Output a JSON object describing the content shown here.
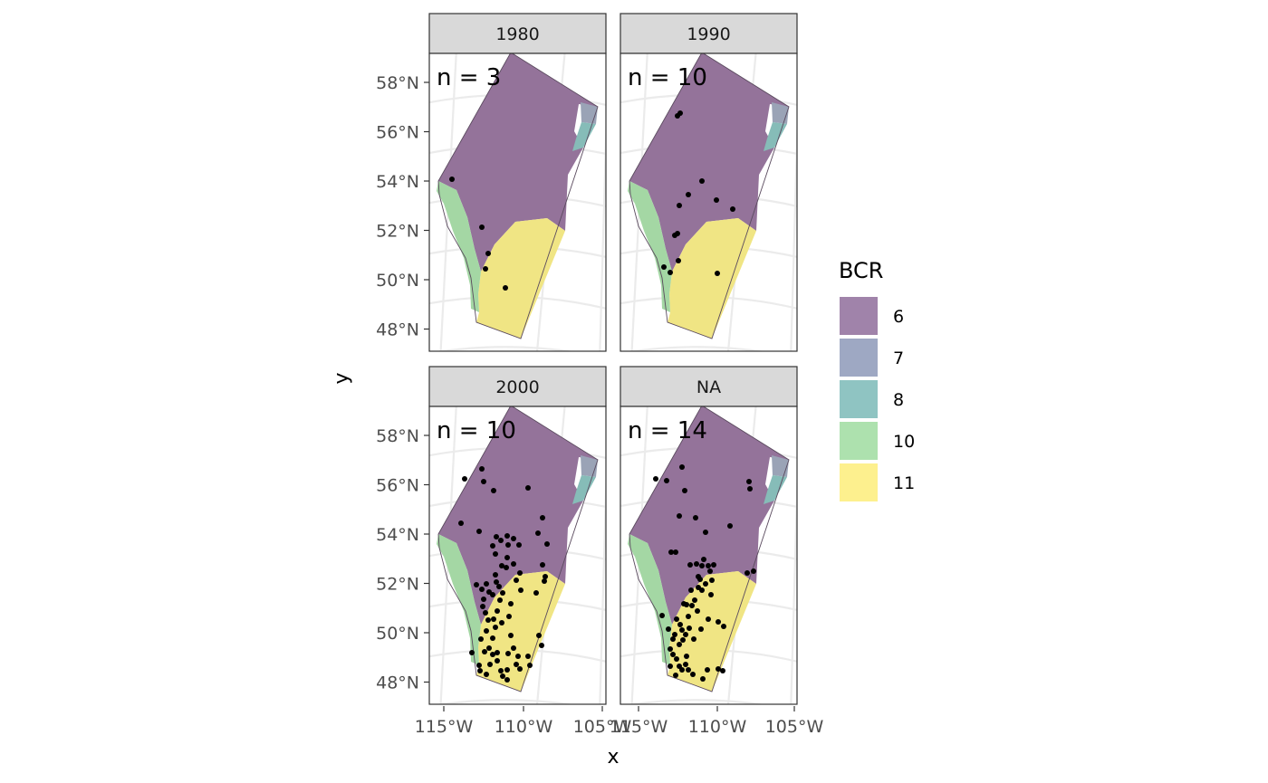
{
  "axes": {
    "x_title": "x",
    "y_title": "y",
    "y_ticks": [
      "58°N",
      "56°N",
      "54°N",
      "52°N",
      "50°N",
      "48°N"
    ],
    "x_ticks": [
      "115°W",
      "110°W",
      "105°W"
    ]
  },
  "legend": {
    "title": "BCR",
    "placement": "right",
    "items": [
      {
        "label": "6",
        "color": "#a083aa"
      },
      {
        "label": "7",
        "color": "#9ea8c3"
      },
      {
        "label": "8",
        "color": "#8fc4c2"
      },
      {
        "label": "10",
        "color": "#ade1ae"
      },
      {
        "label": "11",
        "color": "#fdf08e"
      }
    ]
  },
  "panels": [
    {
      "strip": "1980",
      "count_text": "n = 3"
    },
    {
      "strip": "1990",
      "count_text": "n = 10"
    },
    {
      "strip": "2000",
      "count_text": "n = 10"
    },
    {
      "strip": "NA",
      "count_text": "n = 14"
    }
  ],
  "colors": {
    "strip_bg": "#d9d9d9",
    "panel_border": "#333333",
    "grid": "#ebebeb",
    "region_6": "#94739a",
    "region_7": "#9aa3b6",
    "region_8": "#86bcb8",
    "region_10": "#a4d7a4",
    "region_11": "#f0e584",
    "points": "#000000"
  }
}
